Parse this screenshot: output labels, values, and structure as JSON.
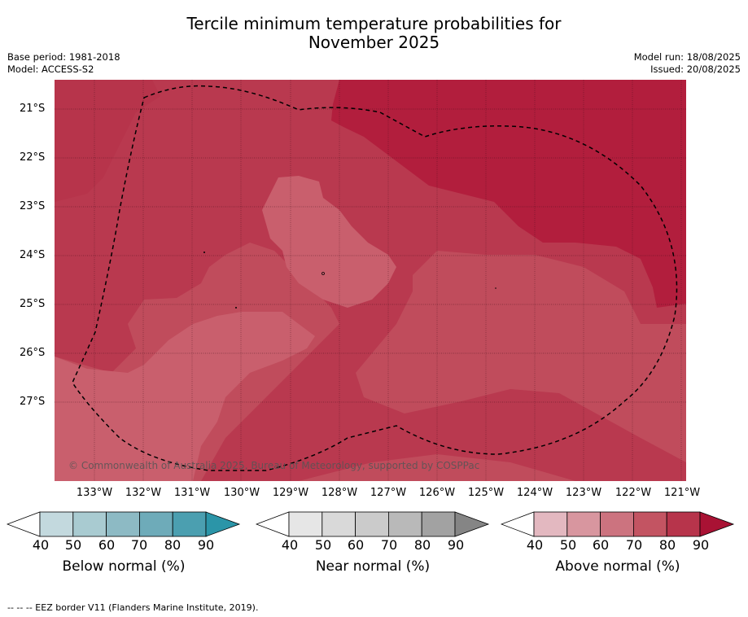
{
  "header": {
    "title_line1": "Tercile minimum temperature probabilities for",
    "title_line2": "November 2025",
    "base_period": "Base period: 1981-2018",
    "model": "Model: ACCESS-S2",
    "model_run": "Model run: 18/08/2025",
    "issued": "Issued: 20/08/2025"
  },
  "map": {
    "lat_labels": [
      "21°S",
      "22°S",
      "23°S",
      "24°S",
      "25°S",
      "26°S",
      "27°S"
    ],
    "lon_labels": [
      "133°W",
      "132°W",
      "131°W",
      "130°W",
      "129°W",
      "128°W",
      "127°W",
      "126°W",
      "125°W",
      "124°W",
      "123°W",
      "122°W",
      "121°W"
    ],
    "copyright": "© Commonwealth of Australia 2025, Bureau of Meteorology, supported by COSPPac"
  },
  "legend": {
    "ticks": [
      "40",
      "50",
      "60",
      "70",
      "80",
      "90"
    ],
    "below": {
      "title": "Below normal (%)",
      "colors": [
        "#ffffff",
        "#c3d9de",
        "#a9cbd1",
        "#8dbac4",
        "#6eabb9",
        "#4b9fb0",
        "#2b95a8"
      ]
    },
    "near": {
      "title": "Near normal (%)",
      "colors": [
        "#ffffff",
        "#e6e6e6",
        "#d9d9d9",
        "#cbcbcb",
        "#b9b9b9",
        "#a2a2a2",
        "#858585"
      ]
    },
    "above": {
      "title": "Above normal (%)",
      "colors": [
        "#ffffff",
        "#e3b8c0",
        "#d8969f",
        "#cc737f",
        "#c35462",
        "#b7344b",
        "#a91234"
      ]
    }
  },
  "footnote": "--  --  -- EEZ border V11 (Flanders Marine Institute, 2019)."
}
